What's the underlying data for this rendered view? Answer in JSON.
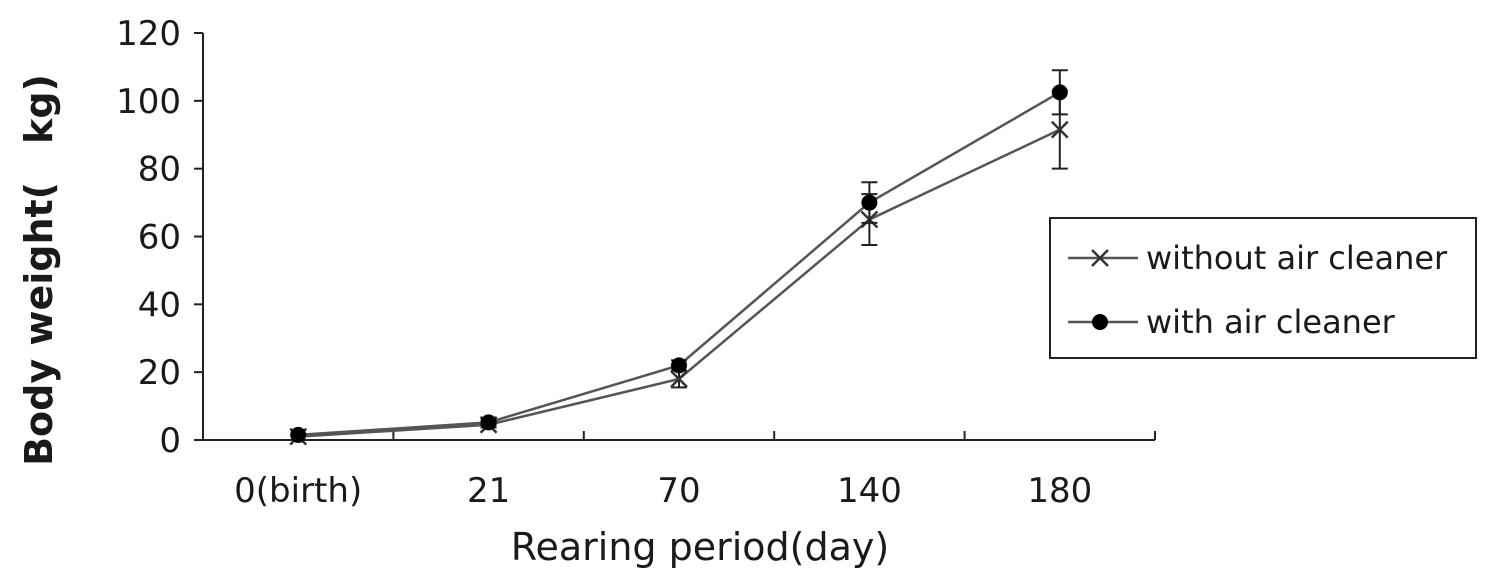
{
  "chart_data": {
    "type": "line",
    "categories": [
      "0(birth)",
      "21",
      "70",
      "140",
      "180"
    ],
    "yticks": [
      "0",
      "20",
      "40",
      "60",
      "80",
      "100",
      "120"
    ],
    "ylim": [
      0,
      120
    ],
    "xlabel": "Rearing period(day)",
    "ylabel": "Body weight(　kg)",
    "legend_position": "right",
    "series": [
      {
        "name": "without air cleaner",
        "marker": "x",
        "color": "#555555",
        "values": [
          1,
          4.5,
          18,
          65,
          91.5
        ],
        "errors": [
          0.3,
          0.8,
          2.5,
          7.5,
          11.5
        ]
      },
      {
        "name": "with air cleaner",
        "marker": "circle",
        "color": "#555555",
        "values": [
          1.5,
          5.2,
          22,
          70,
          102.5
        ],
        "errors": [
          0.3,
          0.8,
          1.5,
          6,
          6.5
        ]
      }
    ]
  }
}
